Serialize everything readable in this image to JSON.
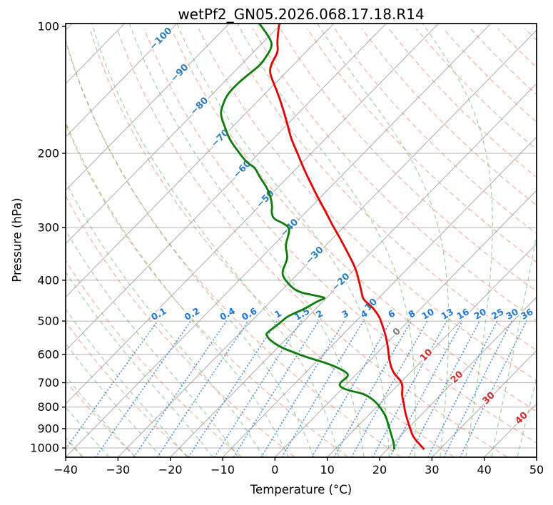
{
  "chart_data": {
    "type": "line",
    "variant": "skew-t-log-p-sounding",
    "title": "wetPf2_GN05.2026.068.17.18.R14",
    "xlabel": "Temperature (°C)",
    "ylabel": "Pressure (hPa)",
    "xlim": [
      -40,
      50
    ],
    "ylim": [
      1050,
      98.5
    ],
    "y_scale": "log",
    "skew": "45deg isotherms",
    "grid": "on",
    "x_ticks": [
      -40,
      -30,
      -20,
      -10,
      0,
      10,
      20,
      30,
      40,
      50
    ],
    "y_ticks": [
      100,
      200,
      300,
      400,
      500,
      600,
      700,
      800,
      900,
      1000
    ],
    "isotherms": {
      "start": -120,
      "end": 50,
      "step": 10,
      "labels": [
        -100,
        -90,
        -80,
        -70,
        -60,
        -50,
        -40,
        -30,
        -20,
        -10,
        0,
        10,
        20,
        30,
        40
      ]
    },
    "dry_adiabats": {
      "theta_start_K": 213,
      "theta_end_K": 513,
      "step_K": 10
    },
    "moist_adiabats": {
      "thetaw_start_C": -60,
      "thetaw_end_C": 50,
      "step_C": 5
    },
    "mixing_ratio_lines": {
      "values_g_kg": [
        0.1,
        0.2,
        0.4,
        0.6,
        1,
        1.5,
        2,
        3,
        4,
        6,
        8,
        10,
        13,
        16,
        20,
        25,
        30,
        36
      ],
      "labels": [
        "0.1",
        "0.2",
        "0.4",
        "0.6",
        "1",
        "1.5",
        "2",
        "3",
        "4",
        "6",
        "8",
        "10",
        "13",
        "16",
        "20",
        "25",
        "30",
        "36"
      ],
      "label_pressure_hPa": 490,
      "top_pressure_hPa": 500
    },
    "series": [
      {
        "name": "temperature",
        "color": "#e50000",
        "width": 2.8,
        "points_p_hPa_T_C": [
          [
            98.5,
            -80.4
          ],
          [
            104,
            -78.8
          ],
          [
            110,
            -77.0
          ],
          [
            115,
            -75.3
          ],
          [
            122,
            -74.5
          ],
          [
            128,
            -73.3
          ],
          [
            135,
            -70.8
          ],
          [
            146,
            -67.0
          ],
          [
            158,
            -63.4
          ],
          [
            171,
            -59.9
          ],
          [
            185,
            -56.5
          ],
          [
            200,
            -52.6
          ],
          [
            216,
            -48.9
          ],
          [
            234,
            -44.8
          ],
          [
            253,
            -40.8
          ],
          [
            273,
            -36.7
          ],
          [
            295,
            -32.7
          ],
          [
            319,
            -28.4
          ],
          [
            345,
            -24.3
          ],
          [
            373,
            -20.2
          ],
          [
            403,
            -16.8
          ],
          [
            433,
            -13.8
          ],
          [
            445,
            -12.6
          ],
          [
            466,
            -9.1
          ],
          [
            490,
            -6.2
          ],
          [
            506,
            -4.7
          ],
          [
            545,
            -1.3
          ],
          [
            589,
            1.8
          ],
          [
            612,
            3.2
          ],
          [
            662,
            6.6
          ],
          [
            696,
            10.1
          ],
          [
            727,
            11.7
          ],
          [
            747,
            12.5
          ],
          [
            783,
            14.5
          ],
          [
            820,
            16.3
          ],
          [
            873,
            19.1
          ],
          [
            914,
            21.2
          ],
          [
            943,
            22.7
          ],
          [
            977,
            25.0
          ],
          [
            1004,
            26.8
          ]
        ]
      },
      {
        "name": "dewpoint",
        "color": "#0a7d0a",
        "width": 2.8,
        "points_p_hPa_T_C": [
          [
            98.5,
            -84.2
          ],
          [
            105,
            -80.3
          ],
          [
            111,
            -77.5
          ],
          [
            119,
            -76.6
          ],
          [
            124,
            -76.3
          ],
          [
            130,
            -76.8
          ],
          [
            138,
            -77.2
          ],
          [
            146,
            -77.0
          ],
          [
            157,
            -75.5
          ],
          [
            163,
            -74.3
          ],
          [
            179,
            -69.9
          ],
          [
            187,
            -67.7
          ],
          [
            196,
            -64.9
          ],
          [
            204,
            -62.5
          ],
          [
            212,
            -60.0
          ],
          [
            216,
            -58.1
          ],
          [
            227,
            -55.6
          ],
          [
            240,
            -52.3
          ],
          [
            253,
            -49.7
          ],
          [
            268,
            -47.4
          ],
          [
            275,
            -46.7
          ],
          [
            286,
            -45.0
          ],
          [
            293,
            -42.2
          ],
          [
            301,
            -40.1
          ],
          [
            313,
            -39.0
          ],
          [
            332,
            -37.6
          ],
          [
            352,
            -35.1
          ],
          [
            366,
            -34.2
          ],
          [
            382,
            -33.4
          ],
          [
            396,
            -31.8
          ],
          [
            418,
            -28.3
          ],
          [
            428,
            -25.9
          ],
          [
            433,
            -23.4
          ],
          [
            438,
            -21.2
          ],
          [
            441,
            -20.1
          ],
          [
            448,
            -21.1
          ],
          [
            468,
            -22.1
          ],
          [
            486,
            -24.0
          ],
          [
            506,
            -24.2
          ],
          [
            534,
            -24.9
          ],
          [
            540,
            -24.5
          ],
          [
            555,
            -22.9
          ],
          [
            577,
            -19.5
          ],
          [
            595,
            -15.7
          ],
          [
            612,
            -12.0
          ],
          [
            626,
            -8.5
          ],
          [
            644,
            -4.9
          ],
          [
            664,
            -1.9
          ],
          [
            677,
            -1.1
          ],
          [
            702,
            -1.6
          ],
          [
            718,
            -0.6
          ],
          [
            732,
            1.9
          ],
          [
            744,
            5.2
          ],
          [
            773,
            8.5
          ],
          [
            804,
            11.0
          ],
          [
            839,
            13.4
          ],
          [
            879,
            15.5
          ],
          [
            932,
            18.1
          ],
          [
            977,
            20.2
          ],
          [
            1004,
            21.2
          ]
        ]
      }
    ],
    "colors": {
      "isotherm_line": "#999999",
      "pressure_grid": "#999999",
      "dry_adiabat": "#ed6541",
      "moist_adiabat": "#55ad55",
      "mixing_line": "#3584dc",
      "isotherm_label_negative": "#2d7dbb",
      "isotherm_label_zero": "#7f7f7f",
      "isotherm_label_positive": "#d62728",
      "mixing_label": "#2176d9",
      "axis": "#000000"
    }
  }
}
